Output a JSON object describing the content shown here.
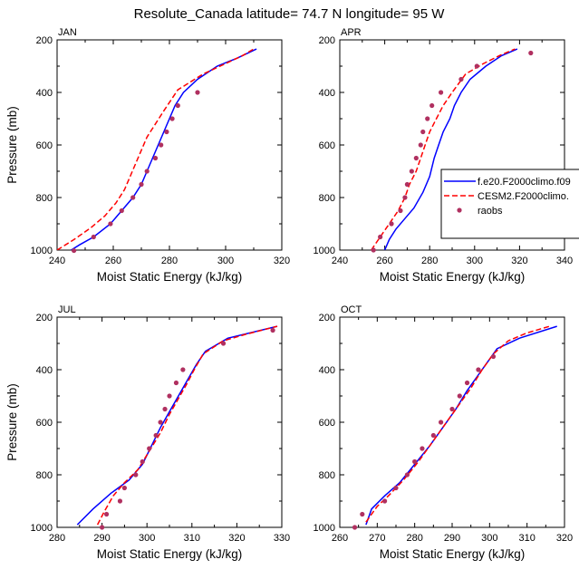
{
  "figure": {
    "title": "Resolute_Canada  latitude= 74.7 N longitude= 95 W"
  },
  "legend": {
    "items": [
      {
        "label": "f.e20.F2000climo.f09",
        "color": "#0000ff",
        "style": "solid"
      },
      {
        "label": "CESM2.F2000climo.",
        "color": "#ff0000",
        "style": "dashed"
      },
      {
        "label": "raobs",
        "color": "#b03060",
        "style": "marker"
      }
    ]
  },
  "chart_data": [
    {
      "type": "line",
      "panel_title": "JAN",
      "xlabel": "Moist Static Energy (kJ/kg)",
      "ylabel": "Pressure (mb)",
      "xlim": [
        240,
        320
      ],
      "ylim": [
        1000,
        200
      ],
      "xticks": [
        "240",
        "260",
        "280",
        "300",
        "320"
      ],
      "yticks": [
        "200",
        "400",
        "600",
        "800",
        "1000"
      ],
      "series": [
        {
          "name": "f.e20.F2000climo.f09",
          "color": "#0000ff",
          "style": "solid",
          "points": [
            [
              245,
              1000
            ],
            [
              248,
              980
            ],
            [
              253,
              950
            ],
            [
              259,
              900
            ],
            [
              263,
              850
            ],
            [
              267,
              800
            ],
            [
              270,
              750
            ],
            [
              272,
              700
            ],
            [
              274,
              650
            ],
            [
              276,
              600
            ],
            [
              278,
              550
            ],
            [
              280,
              500
            ],
            [
              282,
              450
            ],
            [
              285,
              400
            ],
            [
              290,
              350
            ],
            [
              297,
              300
            ],
            [
              304,
              270
            ],
            [
              311,
              235
            ]
          ]
        },
        {
          "name": "CESM2.F2000climo.",
          "color": "#ff0000",
          "style": "dashed",
          "points": [
            [
              240,
              1000
            ],
            [
              246,
              960
            ],
            [
              252,
              915
            ],
            [
              257,
              870
            ],
            [
              261,
              820
            ],
            [
              264,
              770
            ],
            [
              266,
              720
            ],
            [
              268,
              670
            ],
            [
              270,
              620
            ],
            [
              272,
              570
            ],
            [
              275,
              520
            ],
            [
              278,
              470
            ],
            [
              283,
              390
            ],
            [
              292,
              330
            ],
            [
              300,
              290
            ],
            [
              306,
              260
            ],
            [
              310,
              235
            ]
          ]
        },
        {
          "name": "raobs",
          "color": "#b03060",
          "style": "marker",
          "points": [
            [
              246,
              1002
            ],
            [
              253,
              950
            ],
            [
              259,
              900
            ],
            [
              263,
              850
            ],
            [
              267,
              800
            ],
            [
              270,
              750
            ],
            [
              272,
              700
            ],
            [
              275,
              650
            ],
            [
              277,
              600
            ],
            [
              279,
              550
            ],
            [
              281,
              500
            ],
            [
              283,
              450
            ],
            [
              290,
              400
            ]
          ]
        }
      ]
    },
    {
      "type": "line",
      "panel_title": "APR",
      "xlabel": "Moist Static Energy (kJ/kg)",
      "ylabel": "",
      "xlim": [
        240,
        340
      ],
      "ylim": [
        1000,
        200
      ],
      "xticks": [
        "240",
        "260",
        "280",
        "300",
        "320",
        "340"
      ],
      "yticks": [
        "200",
        "400",
        "600",
        "800",
        "1000"
      ],
      "series": [
        {
          "name": "f.e20.F2000climo.f09",
          "color": "#0000ff",
          "style": "solid",
          "points": [
            [
              260,
              1000
            ],
            [
              262,
              960
            ],
            [
              265,
              920
            ],
            [
              269,
              880
            ],
            [
              273,
              840
            ],
            [
              277,
              780
            ],
            [
              280,
              720
            ],
            [
              282,
              650
            ],
            [
              284,
              600
            ],
            [
              286,
              550
            ],
            [
              289,
              500
            ],
            [
              291,
              450
            ],
            [
              294,
              400
            ],
            [
              298,
              350
            ],
            [
              305,
              300
            ],
            [
              312,
              260
            ],
            [
              319,
              235
            ]
          ]
        },
        {
          "name": "CESM2.F2000climo.",
          "color": "#ff0000",
          "style": "dashed",
          "points": [
            [
              254,
              1000
            ],
            [
              258,
              950
            ],
            [
              262,
              900
            ],
            [
              266,
              850
            ],
            [
              269,
              800
            ],
            [
              271,
              750
            ],
            [
              274,
              700
            ],
            [
              276,
              650
            ],
            [
              278,
              600
            ],
            [
              280,
              550
            ],
            [
              283,
              500
            ],
            [
              286,
              450
            ],
            [
              290,
              400
            ],
            [
              296,
              330
            ],
            [
              304,
              290
            ],
            [
              311,
              260
            ],
            [
              318,
              235
            ]
          ]
        },
        {
          "name": "raobs",
          "color": "#b03060",
          "style": "marker",
          "points": [
            [
              255,
              1000
            ],
            [
              258,
              950
            ],
            [
              263,
              900
            ],
            [
              267,
              850
            ],
            [
              269,
              800
            ],
            [
              270,
              750
            ],
            [
              272,
              700
            ],
            [
              274,
              650
            ],
            [
              276,
              600
            ],
            [
              277,
              550
            ],
            [
              279,
              500
            ],
            [
              281,
              450
            ],
            [
              285,
              400
            ],
            [
              294,
              350
            ],
            [
              301,
              300
            ],
            [
              325,
              250
            ]
          ]
        }
      ]
    },
    {
      "type": "line",
      "panel_title": "JUL",
      "xlabel": "Moist Static Energy (kJ/kg)",
      "ylabel": "Pressure (mb)",
      "xlim": [
        280,
        330
      ],
      "ylim": [
        1000,
        200
      ],
      "xticks": [
        "280",
        "290",
        "300",
        "310",
        "320",
        "330"
      ],
      "yticks": [
        "200",
        "400",
        "600",
        "800",
        "1000"
      ],
      "series": [
        {
          "name": "f.e20.F2000climo.f09",
          "color": "#0000ff",
          "style": "solid",
          "points": [
            [
              284.5,
              990
            ],
            [
              288,
              930
            ],
            [
              292,
              870
            ],
            [
              296,
              820
            ],
            [
              299,
              760
            ],
            [
              301,
              690
            ],
            [
              303,
              620
            ],
            [
              305,
              560
            ],
            [
              307,
              500
            ],
            [
              309,
              440
            ],
            [
              311,
              380
            ],
            [
              313,
              330
            ],
            [
              318,
              280
            ],
            [
              329,
              235
            ]
          ]
        },
        {
          "name": "CESM2.F2000climo.",
          "color": "#ff0000",
          "style": "dashed",
          "points": [
            [
              289,
              990
            ],
            [
              290.5,
              940
            ],
            [
              292.5,
              880
            ],
            [
              295,
              830
            ],
            [
              298,
              780
            ],
            [
              300.5,
              710
            ],
            [
              303,
              640
            ],
            [
              305,
              570
            ],
            [
              307,
              510
            ],
            [
              309,
              450
            ],
            [
              310.5,
              400
            ],
            [
              312.5,
              340
            ],
            [
              317,
              290
            ],
            [
              322,
              265
            ],
            [
              329,
              235
            ]
          ]
        },
        {
          "name": "raobs",
          "color": "#b03060",
          "style": "marker",
          "points": [
            [
              290,
              1000
            ],
            [
              291,
              950
            ],
            [
              294,
              900
            ],
            [
              295,
              850
            ],
            [
              297.5,
              800
            ],
            [
              299,
              750
            ],
            [
              300.5,
              700
            ],
            [
              302,
              650
            ],
            [
              303,
              600
            ],
            [
              304,
              550
            ],
            [
              305,
              500
            ],
            [
              306.5,
              450
            ],
            [
              308,
              400
            ],
            [
              317,
              300
            ],
            [
              328,
              250
            ]
          ]
        }
      ]
    },
    {
      "type": "line",
      "panel_title": "OCT",
      "xlabel": "Moist Static Energy (kJ/kg)",
      "ylabel": "",
      "xlim": [
        260,
        320
      ],
      "ylim": [
        1000,
        200
      ],
      "xticks": [
        "260",
        "270",
        "280",
        "290",
        "300",
        "310",
        "320"
      ],
      "yticks": [
        "200",
        "400",
        "600",
        "800",
        "1000"
      ],
      "series": [
        {
          "name": "f.e20.F2000climo.f09",
          "color": "#0000ff",
          "style": "solid",
          "points": [
            [
              267,
              990
            ],
            [
              268.5,
              930
            ],
            [
              272,
              880
            ],
            [
              276,
              830
            ],
            [
              280,
              760
            ],
            [
              284,
              690
            ],
            [
              287.5,
              620
            ],
            [
              291,
              550
            ],
            [
              294,
              480
            ],
            [
              297,
              420
            ],
            [
              300,
              360
            ],
            [
              302,
              320
            ],
            [
              308,
              280
            ],
            [
              318,
              235
            ]
          ]
        },
        {
          "name": "CESM2.F2000climo.",
          "color": "#ff0000",
          "style": "dashed",
          "points": [
            [
              267,
              980
            ],
            [
              270,
              920
            ],
            [
              273,
              880
            ],
            [
              277,
              820
            ],
            [
              281,
              750
            ],
            [
              284.5,
              680
            ],
            [
              288,
              610
            ],
            [
              291.5,
              540
            ],
            [
              295,
              470
            ],
            [
              298,
              400
            ],
            [
              301,
              340
            ],
            [
              305,
              290
            ],
            [
              310,
              260
            ],
            [
              316,
              235
            ]
          ]
        },
        {
          "name": "raobs",
          "color": "#b03060",
          "style": "marker",
          "points": [
            [
              264,
              1000
            ],
            [
              266,
              950
            ],
            [
              272,
              900
            ],
            [
              275,
              850
            ],
            [
              278,
              800
            ],
            [
              280,
              750
            ],
            [
              282,
              700
            ],
            [
              285,
              650
            ],
            [
              287,
              600
            ],
            [
              290,
              550
            ],
            [
              292,
              500
            ],
            [
              294,
              450
            ],
            [
              297,
              400
            ],
            [
              301,
              350
            ]
          ]
        }
      ]
    }
  ]
}
